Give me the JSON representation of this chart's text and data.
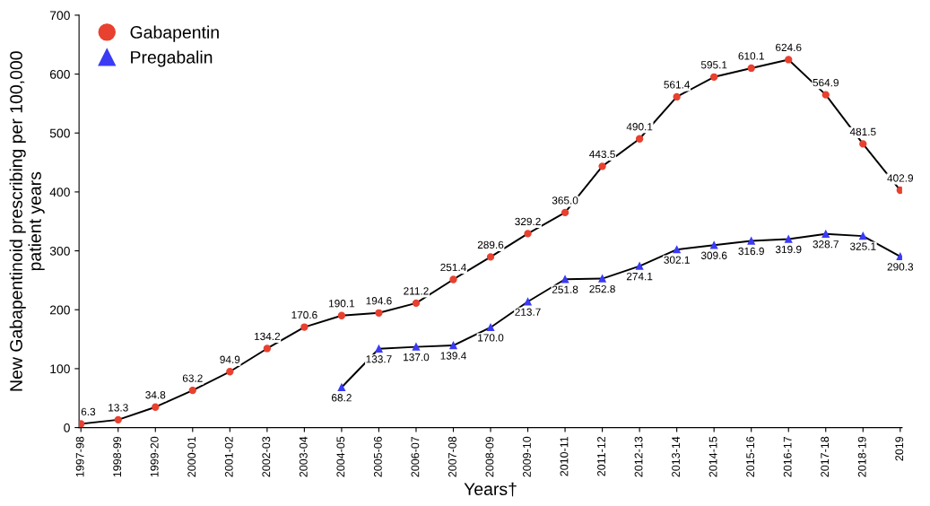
{
  "chart_data": {
    "type": "line",
    "xlabel": "Years†",
    "ylabel": "New Gabapentinoid prescribing per 100,000\npatient years",
    "categories": [
      "1997-98",
      "1998-99",
      "1999-20",
      "2000-01",
      "2001-02",
      "2002-03",
      "2003-04",
      "2004-05",
      "2005-06",
      "2006-07",
      "2007-08",
      "2008-09",
      "2009-10",
      "2010-11",
      "2011-12",
      "2012-13",
      "2013-14",
      "2014-15",
      "2015-16",
      "2016-17",
      "2017-18",
      "2018-19",
      "2019"
    ],
    "series": [
      {
        "name": "Gabapentin",
        "color": "#e8412f",
        "marker": "circle",
        "values": [
          6.3,
          13.3,
          34.8,
          63.2,
          94.9,
          134.2,
          170.6,
          190.1,
          194.6,
          211.2,
          251.4,
          289.6,
          329.2,
          365.0,
          443.5,
          490.1,
          561.4,
          595.1,
          610.1,
          624.6,
          564.9,
          481.5,
          402.9
        ],
        "value_labels": [
          "6.3",
          "13.3",
          "34.8",
          "63.2",
          "94.9",
          "134.2",
          "170.6",
          "190.1",
          "194.6",
          "211.2",
          "251.4",
          "289.6",
          "329.2",
          "365.0",
          "443.5",
          "490.1",
          "561.4",
          "595.1",
          "610.1",
          "624.6",
          "564.9",
          "481.5",
          "402.9"
        ]
      },
      {
        "name": "Pregabalin",
        "color": "#3b3bf5",
        "marker": "triangle",
        "values": [
          null,
          null,
          null,
          null,
          null,
          null,
          null,
          68.2,
          133.7,
          137.0,
          139.4,
          170.0,
          213.7,
          251.8,
          252.8,
          274.1,
          302.1,
          309.6,
          316.9,
          319.9,
          328.7,
          325.1,
          290.3
        ],
        "value_labels": [
          null,
          null,
          null,
          null,
          null,
          null,
          null,
          "68.2",
          "133.7",
          "137.0",
          "139.4",
          "170.0",
          "213.7",
          "251.8",
          "252.8",
          "274.1",
          "302.1",
          "309.6",
          "316.9",
          "319.9",
          "328.7",
          "325.1",
          "290.3"
        ]
      }
    ],
    "ylim": [
      0,
      700
    ],
    "yticks": [
      0,
      100,
      200,
      300,
      400,
      500,
      600,
      700
    ],
    "grid": false,
    "legend": "top left",
    "line_style": "solid"
  }
}
